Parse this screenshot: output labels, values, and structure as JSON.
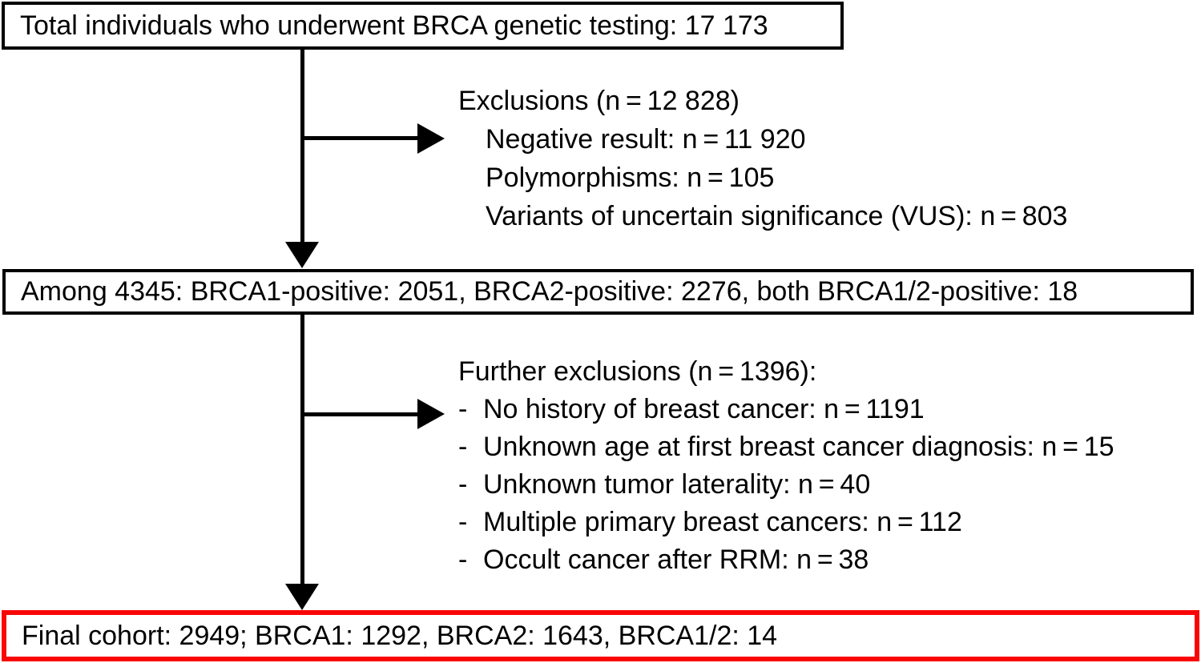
{
  "colors": {
    "background": "#ffffff",
    "text": "#000000",
    "box_border": "#000000",
    "connector": "#000000",
    "final_box_border": "#f90606"
  },
  "flowchart": {
    "top_box": "Total individuals who underwent BRCA genetic testing: 17 173",
    "exclusions": {
      "header": "Exclusions (n = 12 828)",
      "items": [
        "Negative result: n = 11 920",
        "Polymorphisms: n = 105",
        "Variants of uncertain significance (VUS): n = 803"
      ]
    },
    "among_box": "Among 4345: BRCA1-positive: 2051, BRCA2-positive: 2276, both BRCA1/2-positive: 18",
    "further_exclusions": {
      "header": "Further exclusions (n = 1396):",
      "bullet": "-",
      "items": [
        "No history of breast cancer: n = 1191",
        "Unknown age at first breast cancer diagnosis: n = 15",
        "Unknown tumor laterality: n = 40",
        "Multiple primary breast cancers: n = 112",
        "Occult cancer after RRM: n = 38"
      ]
    },
    "final_box": "Final cohort: 2949; BRCA1: 1292, BRCA2: 1643, BRCA1/2: 14"
  }
}
